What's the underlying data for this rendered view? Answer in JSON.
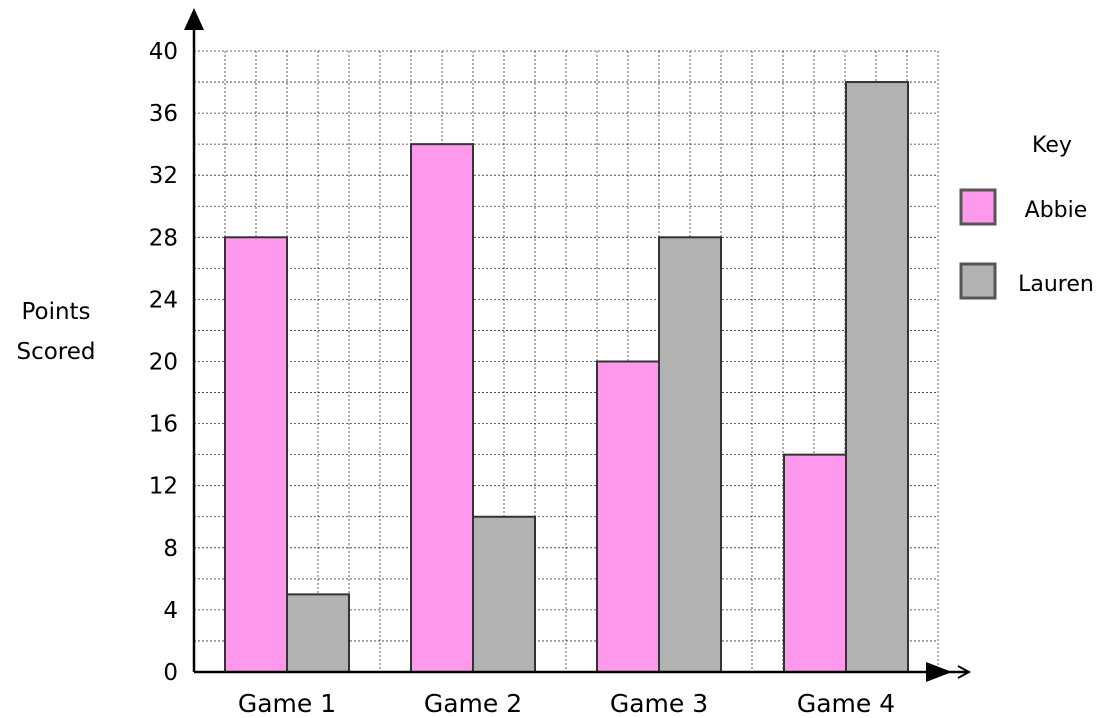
{
  "chart_data": {
    "type": "bar",
    "categories": [
      "Game 1",
      "Game 2",
      "Game 3",
      "Game 4"
    ],
    "series": [
      {
        "name": "Abbie",
        "values": [
          28,
          34,
          20,
          14
        ],
        "color": "#ff99ee"
      },
      {
        "name": "Lauren",
        "values": [
          5,
          10,
          28,
          38
        ],
        "color": "#b2b2b2"
      }
    ],
    "ylabel": "Points Scored",
    "ylabel_lines": [
      "Points",
      "Scored"
    ],
    "xlabel": "",
    "ylim": [
      0,
      40
    ],
    "yticks": [
      0,
      4,
      8,
      12,
      16,
      20,
      24,
      28,
      32,
      36,
      40
    ],
    "grid": true,
    "legend": {
      "title": "Key",
      "placement": "right"
    }
  }
}
